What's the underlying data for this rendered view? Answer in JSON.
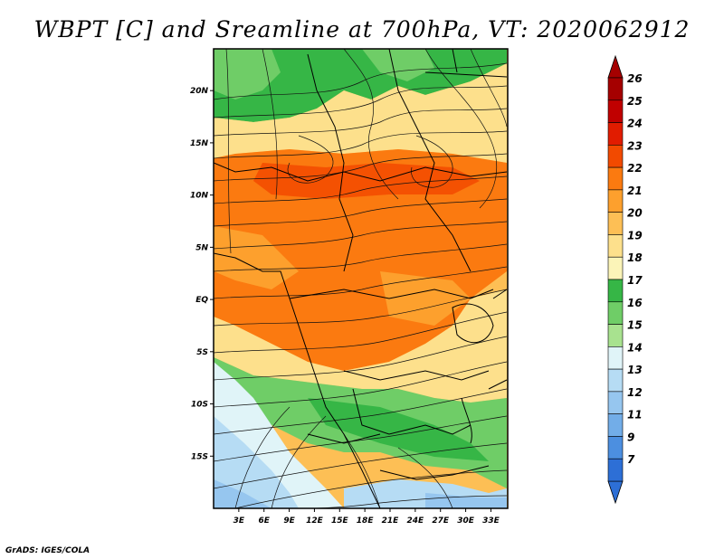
{
  "title": "WBPT [C] and Sreamline at 700hPa, VT: 2020062912",
  "credit": "GrADS: IGES/COLA",
  "map": {
    "lon_range": [
      0,
      35
    ],
    "lat_range": [
      -20,
      24
    ],
    "lat_ticks": [
      {
        "value": 20,
        "label": "20N"
      },
      {
        "value": 15,
        "label": "15N"
      },
      {
        "value": 10,
        "label": "10N"
      },
      {
        "value": 5,
        "label": "5N"
      },
      {
        "value": 0,
        "label": "EQ"
      },
      {
        "value": -5,
        "label": "5S"
      },
      {
        "value": -10,
        "label": "10S"
      },
      {
        "value": -15,
        "label": "15S"
      }
    ],
    "lon_ticks": [
      {
        "value": 3,
        "label": "3E"
      },
      {
        "value": 6,
        "label": "6E"
      },
      {
        "value": 9,
        "label": "9E"
      },
      {
        "value": 12,
        "label": "12E"
      },
      {
        "value": 15,
        "label": "15E"
      },
      {
        "value": 18,
        "label": "18E"
      },
      {
        "value": 21,
        "label": "21E"
      },
      {
        "value": 24,
        "label": "24E"
      },
      {
        "value": 27,
        "label": "27E"
      },
      {
        "value": 30,
        "label": "30E"
      },
      {
        "value": 33,
        "label": "33E"
      }
    ]
  },
  "colorbar": {
    "levels": [
      {
        "label": "26",
        "color": "#a50000"
      },
      {
        "label": "25",
        "color": "#c00000"
      },
      {
        "label": "24",
        "color": "#e11c00"
      },
      {
        "label": "23",
        "color": "#f24a00"
      },
      {
        "label": "22",
        "color": "#fb7a10"
      },
      {
        "label": "21",
        "color": "#fda02d"
      },
      {
        "label": "20",
        "color": "#fdbf55"
      },
      {
        "label": "19",
        "color": "#fde08c"
      },
      {
        "label": "18",
        "color": "#fbf4b8"
      },
      {
        "label": "17",
        "color": "#36b646"
      },
      {
        "label": "16",
        "color": "#6fcd67"
      },
      {
        "label": "15",
        "color": "#a8e28f"
      },
      {
        "label": "14",
        "color": "#e0f4f8"
      },
      {
        "label": "13",
        "color": "#b6dcf4"
      },
      {
        "label": "12",
        "color": "#96c6ef"
      },
      {
        "label": "11",
        "color": "#72ade8"
      },
      {
        "label": "9",
        "color": "#4c8fe0"
      },
      {
        "label": "7",
        "color": "#2d6fd6"
      }
    ],
    "end_colors": {
      "top": "#a50000",
      "bottom": "#2d6fd6"
    }
  }
}
